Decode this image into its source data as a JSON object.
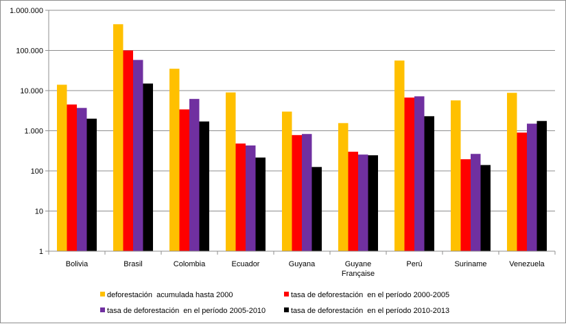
{
  "chart_data": {
    "type": "bar",
    "y_scale": "log",
    "ylim": [
      1,
      1000000
    ],
    "grid": true,
    "legend_position": "bottom",
    "y_ticks": [
      {
        "value": 1,
        "label": "1"
      },
      {
        "value": 10,
        "label": "10"
      },
      {
        "value": 100,
        "label": "100"
      },
      {
        "value": 1000,
        "label": "1.000"
      },
      {
        "value": 10000,
        "label": "10.000"
      },
      {
        "value": 100000,
        "label": "100.000"
      },
      {
        "value": 1000000,
        "label": "1.000.000"
      }
    ],
    "categories": [
      "Bolivia",
      "Brasil",
      "Colombia",
      "Ecuador",
      "Guyana",
      [
        "Guyane",
        "Française"
      ],
      "Perú",
      "Suriname",
      "Venezuela"
    ],
    "series": [
      {
        "name": "deforestación  acumulada hasta 2000",
        "color": "#FFC000",
        "values": [
          14000,
          450000,
          35000,
          9000,
          3000,
          1550,
          56000,
          5700,
          8800
        ]
      },
      {
        "name": "tasa de deforestación  en el período 2000-2005",
        "color": "#FF0000",
        "values": [
          4500,
          100000,
          3400,
          480,
          780,
          300,
          6700,
          195,
          900
        ]
      },
      {
        "name": "tasa de deforestación  en el período 2005-2010",
        "color": "#7030A0",
        "values": [
          3700,
          58000,
          6200,
          430,
          830,
          255,
          7200,
          265,
          1500
        ]
      },
      {
        "name": "tasa de deforestación  en el período 2010-2013",
        "color": "#000000",
        "values": [
          2000,
          15000,
          1700,
          215,
          125,
          245,
          2300,
          140,
          1750
        ]
      }
    ]
  }
}
